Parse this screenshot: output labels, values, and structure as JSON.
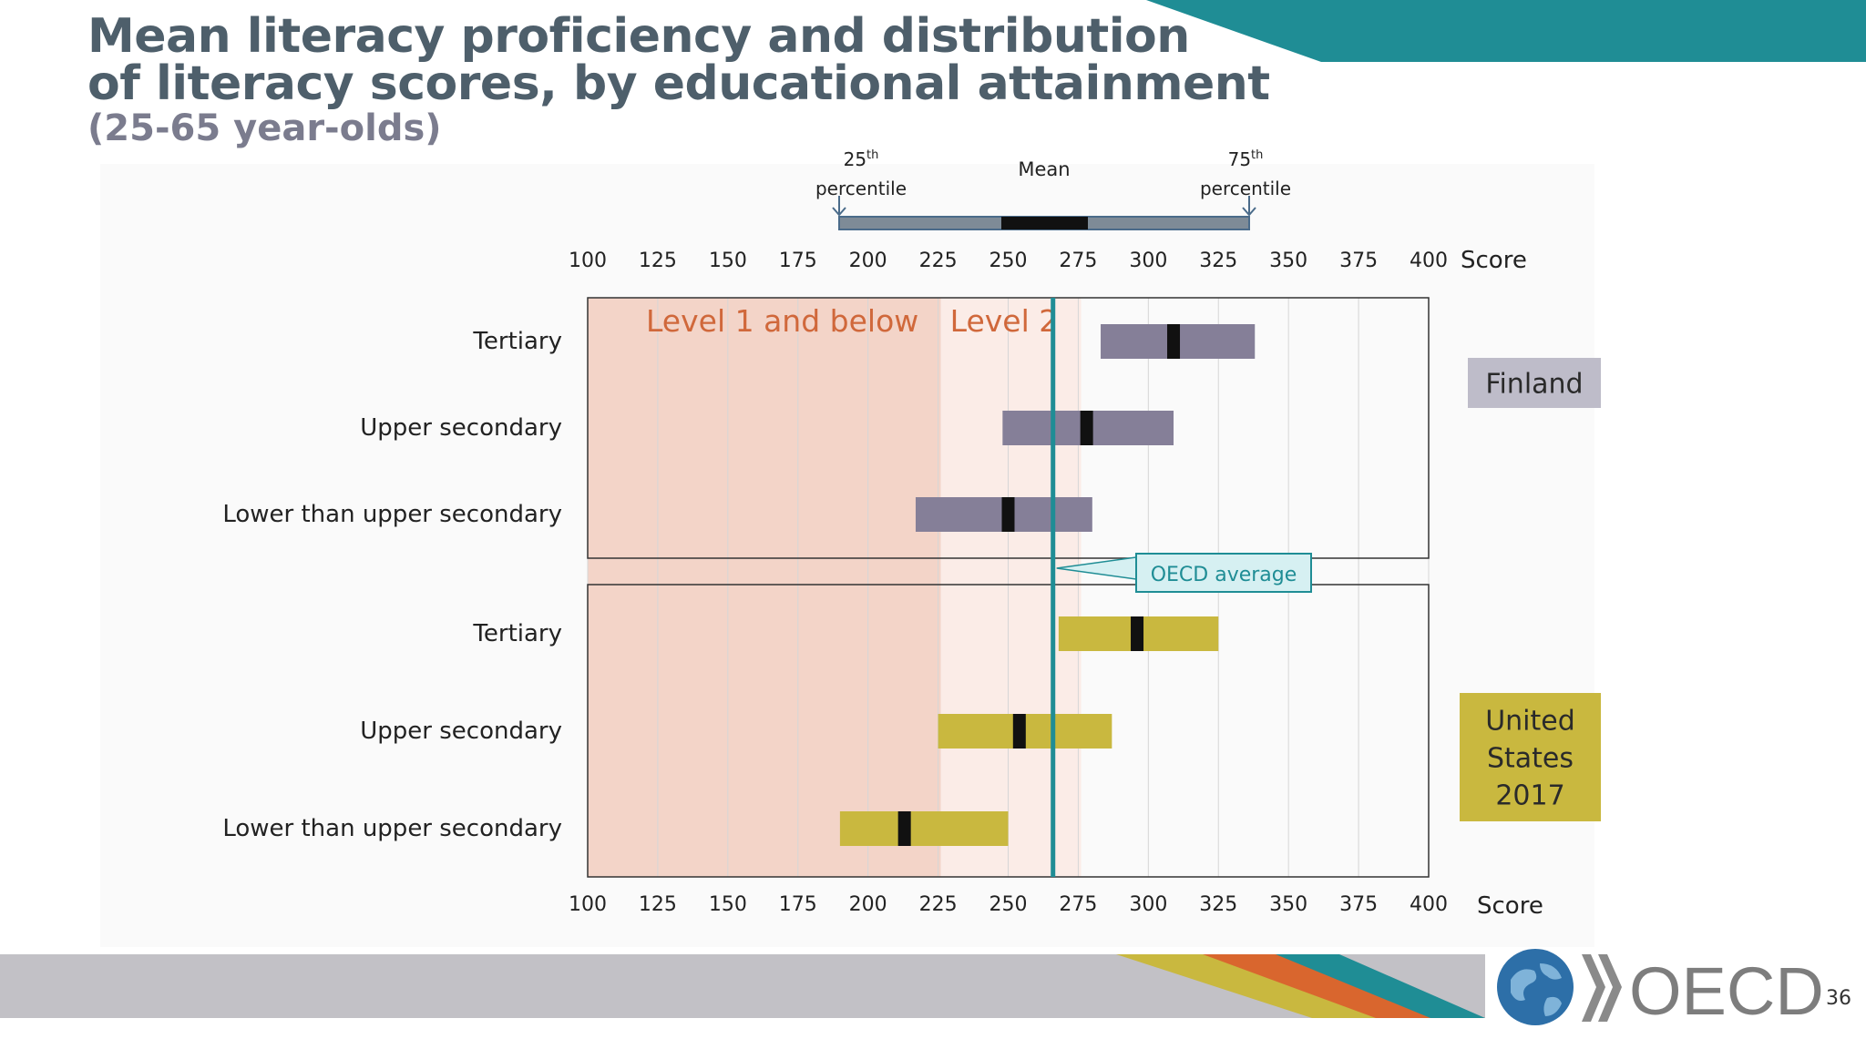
{
  "title_line1": "Mean literacy proficiency and distribution",
  "title_line2": "of literacy scores, by educational attainment",
  "subtitle": "(25-65 year-olds)",
  "legend_key": {
    "p25": "25",
    "p75": "75",
    "ordinal": "th",
    "percentile": "percentile",
    "mean": "Mean"
  },
  "oecd_average_label": "OECD average",
  "oecd_logo_text": "OECD",
  "page_number": "36",
  "colors": {
    "teal": "#1f8d95",
    "finland": "#857f98",
    "united_states": "#c9b83f",
    "level1_band": "#f2cfc2",
    "level2_band": "#fbece7",
    "level_text": "#d0683b"
  },
  "chart_data": {
    "type": "bar",
    "subtype": "range-bar (25th–75th percentile with mean marker)",
    "xlabel": "Score",
    "xlim": [
      100,
      400
    ],
    "xticks": [
      100,
      125,
      150,
      175,
      200,
      225,
      250,
      275,
      300,
      325,
      350,
      375,
      400
    ],
    "oecd_average": 266,
    "proficiency_bands": [
      {
        "label": "Level 1 and below",
        "from": 100,
        "to": 226
      },
      {
        "label": "Level 2",
        "from": 226,
        "to": 276
      }
    ],
    "panels": [
      {
        "name": "Finland",
        "categories": [
          "Tertiary",
          "Upper secondary",
          "Lower than upper secondary"
        ],
        "p25": [
          283,
          248,
          217
        ],
        "mean": [
          309,
          278,
          250
        ],
        "p75": [
          338,
          309,
          280
        ]
      },
      {
        "name": "United States 2017",
        "name_lines": [
          "United",
          "States",
          "2017"
        ],
        "categories": [
          "Tertiary",
          "Upper secondary",
          "Lower than upper secondary"
        ],
        "p25": [
          268,
          225,
          190
        ],
        "mean": [
          296,
          254,
          213
        ],
        "p75": [
          325,
          287,
          250
        ]
      }
    ]
  }
}
